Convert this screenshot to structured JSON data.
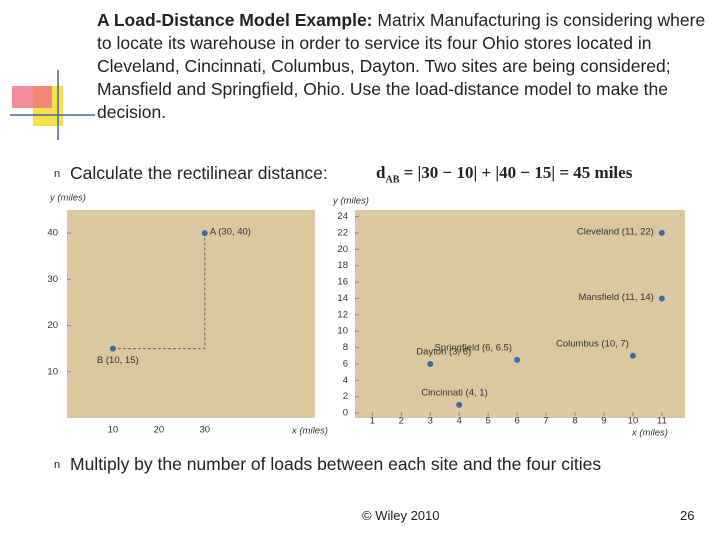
{
  "header": {
    "title_bold": "A Load-Distance Model Example:",
    "title_rest": "Matrix Manufacturing is considering where to locate its warehouse in order to service its four Ohio stores located in Cleveland, Cincinnati, Columbus, Dayton. Two sites are being considered; Mansfield and Springfield, Ohio. Use the load-distance model to make the decision."
  },
  "bullets": [
    {
      "marker": "n",
      "text": "Calculate the rectilinear distance:"
    },
    {
      "marker": "n",
      "text": "Multiply by the number of loads between each site and the four cities"
    }
  ],
  "formula": {
    "lhs": "d",
    "sub": "AB",
    "expr": "= |30 − 10| + |40 − 15| = 45  miles"
  },
  "footer": {
    "copyright": "© Wiley 2010",
    "page": "26"
  },
  "chart_data": [
    {
      "type": "scatter",
      "y_label": "y (miles)",
      "x_label": "x (miles)",
      "xlim": [
        0,
        54
      ],
      "ylim": [
        0,
        45
      ],
      "xticks": [
        10,
        20,
        30
      ],
      "yticks": [
        10,
        20,
        30,
        40
      ],
      "series": [
        {
          "color": "#3b6aa8",
          "x": [
            30,
            10
          ],
          "values": [
            40,
            15
          ],
          "labels": [
            "A (30, 40)",
            "B (10, 15)"
          ]
        }
      ],
      "path": {
        "x": [
          10,
          30,
          30
        ],
        "y": [
          15,
          15,
          40
        ]
      }
    },
    {
      "type": "scatter",
      "y_label": "y (miles)",
      "x_label": "x (miles)",
      "xlim": [
        0.4,
        11.8
      ],
      "ylim": [
        -0.6,
        24.8
      ],
      "xticks": [
        1,
        2,
        3,
        4,
        5,
        6,
        7,
        8,
        9,
        10,
        11
      ],
      "yticks": [
        0,
        2,
        4,
        6,
        8,
        10,
        12,
        14,
        16,
        18,
        20,
        22,
        24
      ],
      "series": [
        {
          "color": "#3b6aa8",
          "x": [
            11,
            11,
            10,
            6,
            3,
            4
          ],
          "values": [
            22,
            14,
            7,
            6.5,
            6,
            1
          ],
          "labels": [
            "Cleveland (11, 22)",
            "Mansfield (11, 14)",
            "Columbus (10, 7)",
            "Springfield (6, 6.5)",
            "Dayton (3, 6)",
            "Cincinnati (4, 1)"
          ]
        }
      ]
    }
  ]
}
